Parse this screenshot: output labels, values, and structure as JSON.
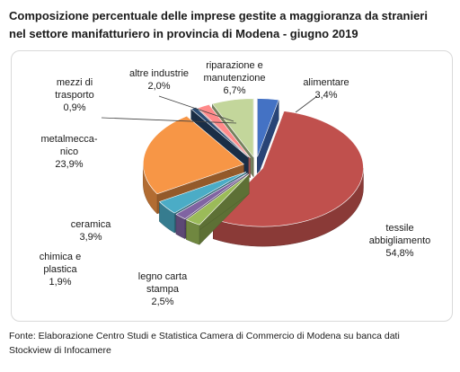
{
  "title_lines": [
    "Composizione percentuale delle imprese gestite a maggioranza da stranieri",
    "nel settore manifatturiero in provincia di Modena - giugno 2019"
  ],
  "source_lines": [
    "Fonte: Elaborazione Centro Studi e Statistica Camera di Commercio di Modena su banca dati",
    "Stockview di Infocamere"
  ],
  "chart_data": {
    "type": "pie",
    "style": "3d-exploded",
    "title": "Composizione percentuale delle imprese gestite a maggioranza da stranieri nel settore manifatturiero in provincia di Modena - giugno 2019",
    "slices": [
      {
        "label_lines": [
          "alimentare"
        ],
        "value_label": "3,4%",
        "value": 3.4,
        "color": "#4472c4"
      },
      {
        "label_lines": [
          "tessile",
          "abbigliamento"
        ],
        "value_label": "54,8%",
        "value": 54.8,
        "color": "#c0504d"
      },
      {
        "label_lines": [
          "legno carta",
          "stampa"
        ],
        "value_label": "2,5%",
        "value": 2.5,
        "color": "#9bbb59"
      },
      {
        "label_lines": [
          "chimica e",
          "plastica"
        ],
        "value_label": "1,9%",
        "value": 1.9,
        "color": "#8064a2"
      },
      {
        "label_lines": [
          "ceramica"
        ],
        "value_label": "3,9%",
        "value": 3.9,
        "color": "#4bacc6"
      },
      {
        "label_lines": [
          "metalmecca-",
          "nico"
        ],
        "value_label": "23,9%",
        "value": 23.9,
        "color": "#f79646"
      },
      {
        "label_lines": [
          "mezzi di",
          "trasporto"
        ],
        "value_label": "0,9%",
        "value": 0.9,
        "color": "#2c4d75"
      },
      {
        "label_lines": [
          "altre industrie"
        ],
        "value_label": "2,0%",
        "value": 2.0,
        "color": "#ff8a8a"
      },
      {
        "label_lines": [
          "riparazione e",
          "manutenzione"
        ],
        "value_label": "6,7%",
        "value": 6.7,
        "color": "#c3d69b"
      }
    ]
  }
}
